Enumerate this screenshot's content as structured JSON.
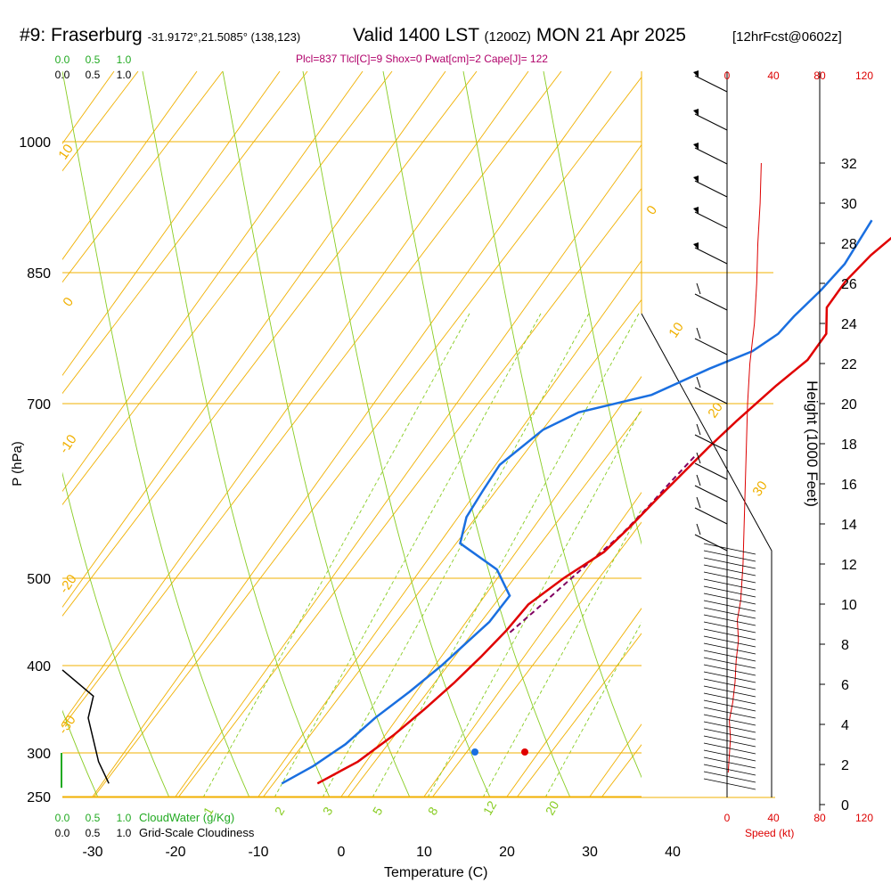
{
  "title": {
    "station": "#9: Fraserburg",
    "coords": "-31.9172°,21.5085° (138,123)",
    "valid": "Valid 1400 LST",
    "utc": "(1200Z)",
    "date": "MON 21 Apr 2025",
    "forecast": "[12hrFcst@0602z]"
  },
  "indices": "Plcl=837 Tlcl[C]=9 Shox=0 Pwat[cm]=2 Cape[J]= 122",
  "chart_data": {
    "type": "line",
    "xlabel": "Temperature (C)",
    "ylabel": "P (hPa)",
    "ylabel_right": "Height (1000 Feet)",
    "x_ticks": [
      -30,
      -20,
      -10,
      0,
      10,
      20,
      30,
      40
    ],
    "x_tick_labels": [
      "-30",
      "-20",
      "-10",
      "0",
      "10",
      "20",
      "30",
      "40"
    ],
    "pressure_ticks": [
      250,
      300,
      400,
      500,
      700,
      850,
      1000
    ],
    "pressure_tick_labels": [
      "250",
      "300",
      "400",
      "500",
      "700",
      "850",
      "1000"
    ],
    "height_ticks": [
      0,
      2,
      4,
      6,
      8,
      10,
      12,
      14,
      16,
      18,
      20,
      22,
      24,
      26,
      28,
      30,
      32
    ],
    "height_tick_labels": [
      "0",
      "2",
      "4",
      "6",
      "8",
      "10",
      "12",
      "14",
      "16",
      "18",
      "20",
      "22",
      "24",
      "26",
      "28",
      "30",
      "32"
    ],
    "colors": {
      "temperature": "#e00000",
      "dewpoint": "#1a6fe0",
      "parcel": "#800060",
      "isobar": "#f0b000",
      "isotherm": "#f0b000",
      "dry_adiabat": "#f0b000",
      "moist_adiabat": "#88cc22",
      "mixing_ratio": "#88cc22",
      "cloud_water": "#22aa22",
      "cloudiness": "#000000",
      "wind_speed": "#dd0000"
    },
    "series": [
      {
        "name": "Temperature",
        "points": [
          [
            -4,
            265
          ],
          [
            -1,
            290
          ],
          [
            1,
            320
          ],
          [
            2.5,
            350
          ],
          [
            3.8,
            380
          ],
          [
            4.8,
            410
          ],
          [
            5.6,
            440
          ],
          [
            6,
            470
          ],
          [
            8,
            500
          ],
          [
            10.6,
            530
          ],
          [
            11.6,
            560
          ],
          [
            12.4,
            590
          ],
          [
            13.3,
            620
          ],
          [
            14.2,
            650
          ],
          [
            15.3,
            680
          ],
          [
            17,
            720
          ],
          [
            18.6,
            750
          ],
          [
            18.6,
            780
          ],
          [
            16.4,
            810
          ],
          [
            16.4,
            840
          ],
          [
            17.2,
            870
          ],
          [
            18.7,
            900
          ],
          [
            21.4,
            920
          ]
        ]
      },
      {
        "name": "Dewpoint",
        "points": [
          [
            -8.3,
            265
          ],
          [
            -6,
            285
          ],
          [
            -4,
            310
          ],
          [
            -2.7,
            340
          ],
          [
            -0.8,
            370
          ],
          [
            0.8,
            400
          ],
          [
            2,
            430
          ],
          [
            2.8,
            450
          ],
          [
            3,
            480
          ],
          [
            -0.8,
            510
          ],
          [
            -7.5,
            540
          ],
          [
            -9,
            570
          ],
          [
            -9.3,
            600
          ],
          [
            -9.5,
            630
          ],
          [
            -7.3,
            670
          ],
          [
            -4.5,
            690
          ],
          [
            2.8,
            710
          ],
          [
            7.5,
            740
          ],
          [
            11.2,
            760
          ],
          [
            12.8,
            780
          ],
          [
            13.2,
            800
          ],
          [
            14.2,
            830
          ],
          [
            14.8,
            860
          ],
          [
            14.5,
            890
          ],
          [
            14.3,
            910
          ]
        ]
      },
      {
        "name": "Parcel",
        "points": [
          [
            6.2,
            438
          ],
          [
            7.2,
            460
          ],
          [
            8.5,
            490
          ],
          [
            9.8,
            520
          ],
          [
            11.2,
            550
          ],
          [
            12,
            580
          ],
          [
            12.6,
            610
          ],
          [
            13.3,
            640
          ]
        ]
      },
      {
        "name": "Cloud water",
        "points": [
          [
            0.0,
            260
          ],
          [
            0.0,
            1000
          ]
        ]
      },
      {
        "name": "Grid-scale cloudiness",
        "points": [
          [
            0.09,
            265
          ],
          [
            0.07,
            290
          ],
          [
            0.05,
            340
          ],
          [
            0.06,
            365
          ],
          [
            0.0,
            395
          ]
        ]
      },
      {
        "name": "Wind speed",
        "points": [
          [
            1,
            1.6
          ],
          [
            3,
            3.3
          ],
          [
            2,
            4.2
          ],
          [
            5,
            5.1
          ],
          [
            7,
            6.1
          ],
          [
            8,
            7.2
          ],
          [
            10,
            8.2
          ],
          [
            9,
            9.2
          ],
          [
            12,
            10.2
          ],
          [
            14,
            12
          ],
          [
            15,
            14
          ],
          [
            16,
            16
          ],
          [
            17,
            18
          ],
          [
            18,
            20
          ],
          [
            20,
            22
          ],
          [
            24,
            24
          ],
          [
            26,
            26
          ],
          [
            27,
            28
          ],
          [
            29,
            30
          ],
          [
            30,
            32
          ]
        ]
      }
    ],
    "labels": {
      "mixing_ratio_values": [
        "1",
        "2",
        "3",
        "5",
        "8",
        "12",
        "20"
      ],
      "isotherm_labels": [
        "10",
        "-10",
        "-20",
        "-30",
        "0",
        "10",
        "20",
        "30"
      ],
      "cloud_water_axis": [
        "0.0",
        "0.5",
        "1.0"
      ],
      "cloudiness_axis": [
        "0.0",
        "0.5",
        "1.0"
      ],
      "speed_axis": [
        "0",
        "40",
        "80",
        "120"
      ],
      "cloud_water_label": "CloudWater (g/Kg)",
      "cloudiness_label": "Grid-Scale Cloudiness",
      "speed_label": "Speed (kt)"
    },
    "surface_temperature": 22,
    "surface_dewpoint": 16,
    "grid": true
  }
}
